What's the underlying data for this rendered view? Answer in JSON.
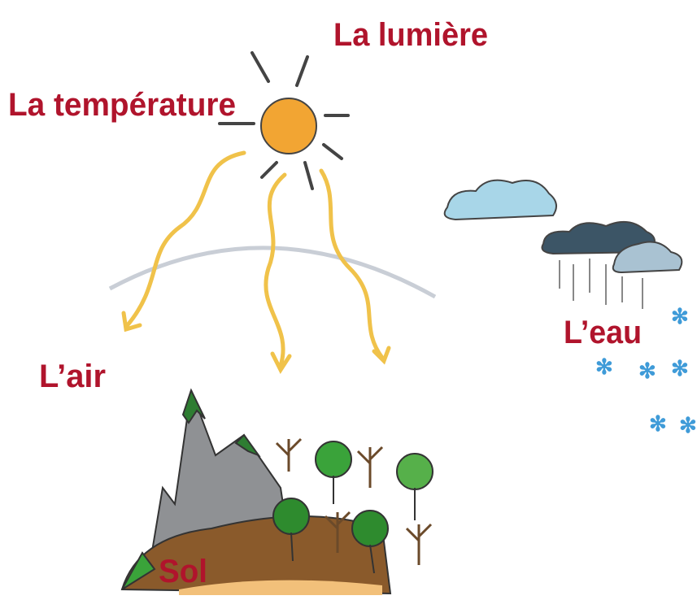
{
  "labels": [
    "La lumière",
    "La température",
    "L’air",
    "L’eau",
    "Sol"
  ]
}
